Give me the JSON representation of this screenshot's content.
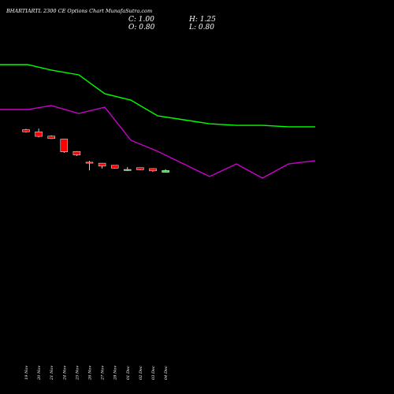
{
  "header": {
    "title": "BHARTIARTL 2300 CE Options  Chart MunafaSutra.com",
    "close_label": "C:",
    "close_value": "1.00",
    "open_label": "O:",
    "open_value": "0.80",
    "high_label": "H:",
    "high_value": "1.25",
    "low_label": "L:",
    "low_value": "0.80"
  },
  "colors": {
    "background": "#000000",
    "upper_line": "#00ff00",
    "lower_line": "#cc00cc",
    "up_candle": "#00ff00",
    "down_candle": "#ff0000",
    "wick": "#ffffff",
    "text": "#ffffff"
  },
  "chart_data": {
    "type": "candlestick",
    "categories": [
      "19 Nov",
      "20 Nov",
      "21 Nov",
      "24 Nov",
      "25 Nov",
      "26 Nov",
      "27 Nov",
      "28 Nov",
      "01 Dec",
      "02 Dec",
      "03 Dec",
      "04 Dec"
    ],
    "candles": [
      {
        "open": 26.3,
        "high": 27.2,
        "low": 23.0,
        "close": 23.9,
        "dir": "down"
      },
      {
        "open": 23.8,
        "high": 27.5,
        "low": 17.6,
        "close": 18.7,
        "dir": "down"
      },
      {
        "open": 19.0,
        "high": 19.8,
        "low": 15.7,
        "close": 16.2,
        "dir": "down"
      },
      {
        "open": 15.6,
        "high": 15.8,
        "low": 0.0,
        "close": 1.2,
        "dir": "down"
      },
      {
        "open": 1.6,
        "high": 2.0,
        "low": -3.5,
        "close": -2.3,
        "dir": "down"
      },
      {
        "open": -10.6,
        "high": -9.2,
        "low": -19.9,
        "close": -11.6,
        "dir": "down"
      },
      {
        "open": -11.7,
        "high": -11.5,
        "low": -17.7,
        "close": -15.0,
        "dir": "down"
      },
      {
        "open": -14.1,
        "high": -14.0,
        "low": -17.9,
        "close": -17.3,
        "dir": "down"
      },
      {
        "open": -20.0,
        "high": -16.0,
        "low": -20.4,
        "close": -18.8,
        "dir": "up"
      },
      {
        "open": -16.8,
        "high": -16.8,
        "low": -19.6,
        "close": -19.1,
        "dir": "down"
      },
      {
        "open": -17.8,
        "high": -17.5,
        "low": -21.5,
        "close": -20.4,
        "dir": "down"
      },
      {
        "open": -22.0,
        "high": -18.5,
        "low": -22.0,
        "close": -20.0,
        "dir": "up"
      }
    ],
    "upper_line": {
      "x": [
        0,
        35,
        65,
        100,
        133,
        166,
        200,
        233,
        266,
        300,
        333,
        366,
        400
      ],
      "y": [
        100,
        100,
        93.8,
        88.4,
        67.0,
        59.8,
        42.0,
        37.5,
        33.0,
        31.2,
        31.2,
        29.5,
        29.5
      ]
    },
    "lower_line": {
      "x": [
        0,
        35,
        65,
        100,
        133,
        166,
        200,
        233,
        266,
        300,
        333,
        366,
        400
      ],
      "y": [
        49.1,
        49.1,
        53.6,
        44.6,
        51.8,
        14.3,
        1.8,
        -12.5,
        -26.8,
        -12.5,
        -28.6,
        -12.5,
        -8.9
      ]
    }
  }
}
